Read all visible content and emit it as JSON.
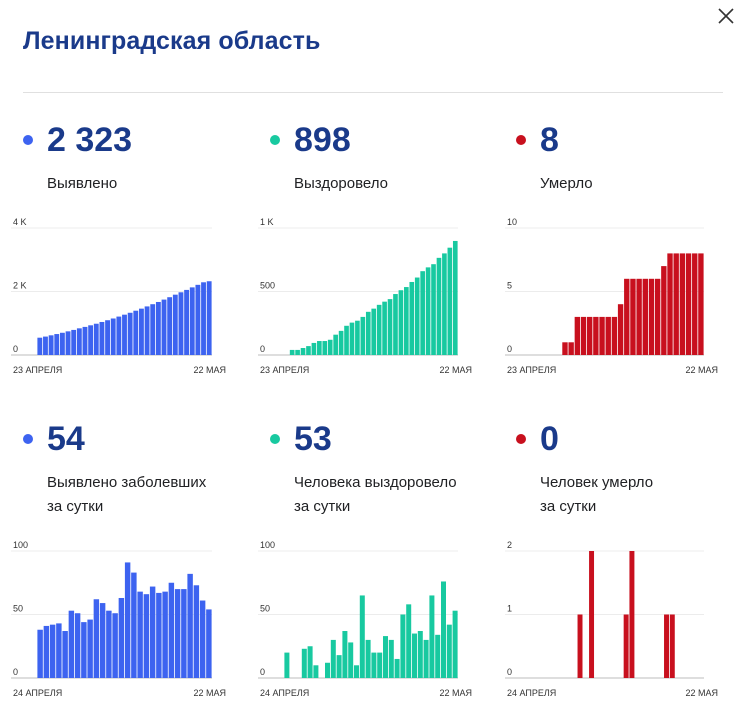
{
  "header": {
    "title": "Ленинградская область"
  },
  "stats": [
    {
      "value": "2 323",
      "label_line1": "Выявлено",
      "label_line2": ""
    },
    {
      "value": "898",
      "label_line1": "Выздоровело",
      "label_line2": ""
    },
    {
      "value": "8",
      "label_line1": "Умерло",
      "label_line2": ""
    },
    {
      "value": "54",
      "label_line1": "Выявлено заболевших",
      "label_line2": "за сутки"
    },
    {
      "value": "53",
      "label_line1": "Человека выздоровело",
      "label_line2": "за сутки"
    },
    {
      "value": "0",
      "label_line1": "Человек умерло",
      "label_line2": "за сутки"
    }
  ],
  "colors": {
    "blue": "#3d63f0",
    "teal": "#18c9a0",
    "red": "#c8101e",
    "title": "#1a3a8a"
  },
  "chart_data": [
    {
      "type": "bar",
      "color": "blue",
      "x_start_label": "23 АПРЕЛЯ",
      "x_end_label": "22 МАЯ",
      "ylim": [
        0,
        4000
      ],
      "ytick_values": [
        0,
        2000,
        4000
      ],
      "ytick_labels": [
        "0",
        "2 K",
        "4 K"
      ],
      "values": [
        545,
        580,
        620,
        660,
        700,
        745,
        790,
        840,
        885,
        935,
        985,
        1040,
        1095,
        1150,
        1210,
        1270,
        1330,
        1395,
        1460,
        1530,
        1600,
        1670,
        1745,
        1820,
        1900,
        1975,
        2050,
        2130,
        2210,
        2290,
        2323
      ]
    },
    {
      "type": "bar",
      "color": "teal",
      "x_start_label": "23 АПРЕЛЯ",
      "x_end_label": "22 МАЯ",
      "ylim": [
        0,
        1000
      ],
      "ytick_values": [
        0,
        500,
        1000
      ],
      "ytick_labels": [
        "0",
        "500",
        "1 K"
      ],
      "values": [
        0,
        40,
        40,
        55,
        70,
        95,
        110,
        110,
        120,
        160,
        190,
        230,
        255,
        270,
        300,
        340,
        365,
        395,
        420,
        440,
        480,
        510,
        535,
        575,
        610,
        660,
        690,
        715,
        765,
        800,
        845,
        898
      ]
    },
    {
      "type": "bar",
      "color": "red",
      "x_start_label": "23 АПРЕЛЯ",
      "x_end_label": "22 МАЯ",
      "ylim": [
        0,
        10
      ],
      "ytick_values": [
        0,
        5,
        10
      ],
      "ytick_labels": [
        "0",
        "5",
        "10"
      ],
      "values": [
        0,
        0,
        0,
        0,
        0,
        1,
        1,
        3,
        3,
        3,
        3,
        3,
        3,
        3,
        4,
        6,
        6,
        6,
        6,
        6,
        6,
        7,
        8,
        8,
        8,
        8,
        8,
        8
      ]
    },
    {
      "type": "bar",
      "color": "blue",
      "x_start_label": "24 АПРЕЛЯ",
      "x_end_label": "22 МАЯ",
      "ylim": [
        0,
        100
      ],
      "ytick_values": [
        0,
        50,
        100
      ],
      "ytick_labels": [
        "0",
        "50",
        "100"
      ],
      "values": [
        38,
        41,
        42,
        43,
        37,
        53,
        51,
        44,
        46,
        62,
        59,
        53,
        51,
        63,
        91,
        83,
        68,
        66,
        72,
        67,
        68,
        75,
        70,
        70,
        82,
        73,
        61,
        54
      ]
    },
    {
      "type": "bar",
      "color": "teal",
      "x_start_label": "24 АПРЕЛЯ",
      "x_end_label": "22 МАЯ",
      "ylim": [
        0,
        100
      ],
      "ytick_values": [
        0,
        50,
        100
      ],
      "ytick_labels": [
        "0",
        "50",
        "100"
      ],
      "values": [
        20,
        0,
        0,
        23,
        25,
        10,
        0,
        12,
        30,
        18,
        37,
        28,
        10,
        65,
        30,
        20,
        20,
        33,
        30,
        15,
        50,
        58,
        35,
        37,
        30,
        65,
        34,
        76,
        42,
        53
      ]
    },
    {
      "type": "bar",
      "color": "red",
      "x_start_label": "24 АПРЕЛЯ",
      "x_end_label": "22 МАЯ",
      "ylim": [
        0,
        2
      ],
      "ytick_values": [
        0,
        1,
        2
      ],
      "ytick_labels": [
        "0",
        "1",
        "2"
      ],
      "values": [
        0,
        0,
        0,
        0,
        0,
        0,
        0,
        0,
        1,
        0,
        2,
        0,
        0,
        0,
        0,
        0,
        1,
        2,
        0,
        0,
        0,
        0,
        0,
        1,
        1,
        0,
        0,
        0,
        0,
        0
      ]
    }
  ]
}
